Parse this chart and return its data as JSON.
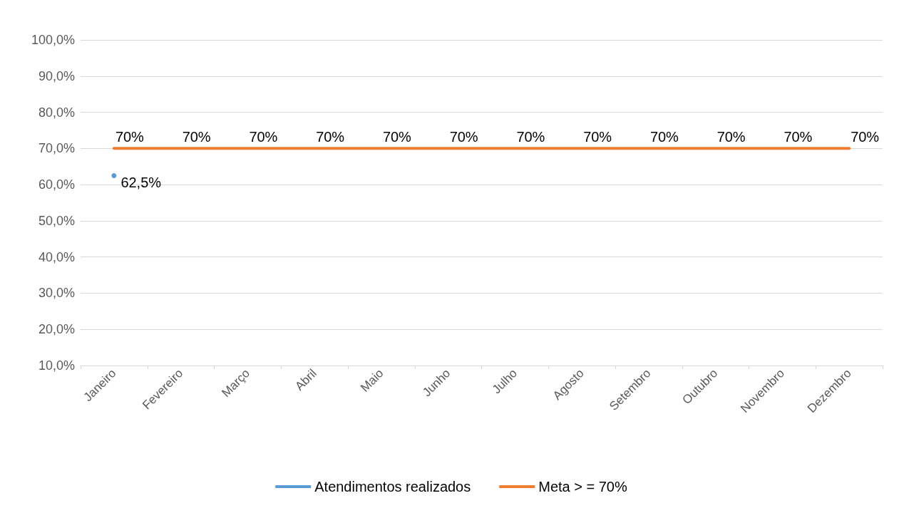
{
  "chart_data": {
    "type": "line",
    "categories": [
      "Janeiro",
      "Fevereiro",
      "Março",
      "Abril",
      "Maio",
      "Junho",
      "Julho",
      "Agosto",
      "Setembro",
      "Outubro",
      "Novembro",
      "Dezembro"
    ],
    "series": [
      {
        "name": "Atendimentos realizados",
        "color": "#5b9bd5",
        "marker": "circle",
        "values": [
          62.5,
          null,
          null,
          null,
          null,
          null,
          null,
          null,
          null,
          null,
          null,
          null
        ],
        "value_labels": [
          "62,5%",
          null,
          null,
          null,
          null,
          null,
          null,
          null,
          null,
          null,
          null,
          null
        ]
      },
      {
        "name": "Meta > = 70%",
        "color": "#ed7d31",
        "values": [
          70,
          70,
          70,
          70,
          70,
          70,
          70,
          70,
          70,
          70,
          70,
          70
        ],
        "value_labels": [
          "70%",
          "70%",
          "70%",
          "70%",
          "70%",
          "70%",
          "70%",
          "70%",
          "70%",
          "70%",
          "70%",
          "70%"
        ]
      }
    ],
    "ylim": [
      10,
      100
    ],
    "yticks": [
      {
        "value": 10,
        "label": "10,0%"
      },
      {
        "value": 20,
        "label": "20,0%"
      },
      {
        "value": 30,
        "label": "30,0%"
      },
      {
        "value": 40,
        "label": "40,0%"
      },
      {
        "value": 50,
        "label": "50,0%"
      },
      {
        "value": 60,
        "label": "60,0%"
      },
      {
        "value": 70,
        "label": "70,0%"
      },
      {
        "value": 80,
        "label": "80,0%"
      },
      {
        "value": 90,
        "label": "90,0%"
      },
      {
        "value": 100,
        "label": "100,0%"
      }
    ],
    "grid": "y",
    "legend": "bottom",
    "marker": "none",
    "line_style": "solid"
  }
}
